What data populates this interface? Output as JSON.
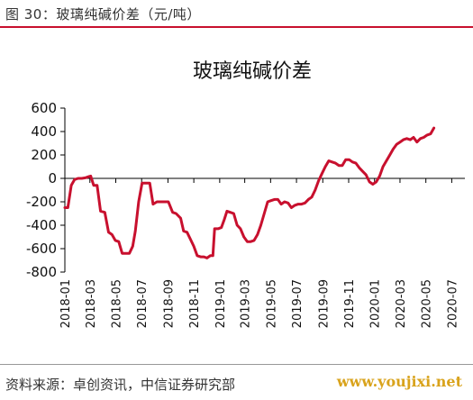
{
  "header": {
    "caption": "图 30：玻璃纯碱价差（元/吨）"
  },
  "footer": {
    "source": "资料来源：卓创资讯，中信证券研究部",
    "watermark": "www.youjixi.net"
  },
  "colors": {
    "series": "#c8102e",
    "accent_rule": "#c8102e"
  },
  "chart_data": {
    "type": "line",
    "title": "玻璃纯碱价差",
    "xlabel": "",
    "ylabel": "",
    "ylim": [
      -800,
      600
    ],
    "yticks": [
      "600",
      "400",
      "200",
      "0",
      "-200",
      "-400",
      "-600",
      "-800"
    ],
    "ytick_values": [
      600,
      400,
      200,
      0,
      -200,
      -400,
      -600,
      -800
    ],
    "x_start": "2018-01",
    "x_end": "2020-08",
    "xticks": [
      "2018-01",
      "2018-03",
      "2018-05",
      "2018-07",
      "2018-09",
      "2018-11",
      "2019-01",
      "2019-03",
      "2019-05",
      "2019-07",
      "2019-09",
      "2019-11",
      "2020-01",
      "2020-03",
      "2020-05",
      "2020-07"
    ],
    "grid": false,
    "legend": "none",
    "series": [
      {
        "points": [
          [
            "2018-01-01",
            -250
          ],
          [
            "2018-01-08",
            -250
          ],
          [
            "2018-01-16",
            -60
          ],
          [
            "2018-01-24",
            -10
          ],
          [
            "2018-02-01",
            0
          ],
          [
            "2018-02-10",
            0
          ],
          [
            "2018-02-18",
            5
          ],
          [
            "2018-02-26",
            15
          ],
          [
            "2018-03-03",
            20
          ],
          [
            "2018-03-10",
            -60
          ],
          [
            "2018-03-18",
            -60
          ],
          [
            "2018-03-26",
            -280
          ],
          [
            "2018-04-05",
            -290
          ],
          [
            "2018-04-14",
            -460
          ],
          [
            "2018-04-22",
            -480
          ],
          [
            "2018-04-30",
            -530
          ],
          [
            "2018-05-08",
            -540
          ],
          [
            "2018-05-16",
            -640
          ],
          [
            "2018-05-24",
            -640
          ],
          [
            "2018-06-02",
            -640
          ],
          [
            "2018-06-10",
            -580
          ],
          [
            "2018-06-16",
            -450
          ],
          [
            "2018-06-24",
            -200
          ],
          [
            "2018-07-02",
            -40
          ],
          [
            "2018-07-12",
            -40
          ],
          [
            "2018-07-20",
            -40
          ],
          [
            "2018-07-28",
            -220
          ],
          [
            "2018-08-06",
            -200
          ],
          [
            "2018-08-20",
            -200
          ],
          [
            "2018-09-02",
            -200
          ],
          [
            "2018-09-12",
            -290
          ],
          [
            "2018-09-20",
            -300
          ],
          [
            "2018-10-01",
            -340
          ],
          [
            "2018-10-08",
            -450
          ],
          [
            "2018-10-16",
            -460
          ],
          [
            "2018-10-24",
            -520
          ],
          [
            "2018-11-01",
            -580
          ],
          [
            "2018-11-09",
            -660
          ],
          [
            "2018-11-17",
            -670
          ],
          [
            "2018-11-25",
            -670
          ],
          [
            "2018-12-02",
            -680
          ],
          [
            "2018-12-10",
            -660
          ],
          [
            "2018-12-16",
            -660
          ],
          [
            "2018-12-20",
            -430
          ],
          [
            "2018-12-28",
            -430
          ],
          [
            "2019-01-05",
            -420
          ],
          [
            "2019-01-12",
            -350
          ],
          [
            "2019-01-18",
            -280
          ],
          [
            "2019-01-26",
            -290
          ],
          [
            "2019-02-03",
            -300
          ],
          [
            "2019-02-11",
            -400
          ],
          [
            "2019-02-19",
            -430
          ],
          [
            "2019-02-27",
            -500
          ],
          [
            "2019-03-07",
            -540
          ],
          [
            "2019-03-15",
            -540
          ],
          [
            "2019-03-23",
            -530
          ],
          [
            "2019-03-31",
            -480
          ],
          [
            "2019-04-08",
            -400
          ],
          [
            "2019-04-16",
            -300
          ],
          [
            "2019-04-24",
            -200
          ],
          [
            "2019-05-02",
            -190
          ],
          [
            "2019-05-10",
            -180
          ],
          [
            "2019-05-18",
            -180
          ],
          [
            "2019-05-26",
            -220
          ],
          [
            "2019-06-03",
            -200
          ],
          [
            "2019-06-11",
            -210
          ],
          [
            "2019-06-19",
            -250
          ],
          [
            "2019-06-27",
            -230
          ],
          [
            "2019-07-05",
            -220
          ],
          [
            "2019-07-13",
            -220
          ],
          [
            "2019-07-21",
            -210
          ],
          [
            "2019-07-29",
            -180
          ],
          [
            "2019-08-06",
            -160
          ],
          [
            "2019-08-14",
            -100
          ],
          [
            "2019-08-22",
            -20
          ],
          [
            "2019-08-30",
            40
          ],
          [
            "2019-09-07",
            100
          ],
          [
            "2019-09-15",
            150
          ],
          [
            "2019-09-23",
            140
          ],
          [
            "2019-10-01",
            130
          ],
          [
            "2019-10-09",
            110
          ],
          [
            "2019-10-17",
            110
          ],
          [
            "2019-10-25",
            160
          ],
          [
            "2019-11-02",
            160
          ],
          [
            "2019-11-10",
            140
          ],
          [
            "2019-11-18",
            130
          ],
          [
            "2019-11-26",
            90
          ],
          [
            "2019-12-04",
            60
          ],
          [
            "2019-12-12",
            30
          ],
          [
            "2019-12-20",
            -30
          ],
          [
            "2019-12-28",
            -50
          ],
          [
            "2020-01-05",
            -30
          ],
          [
            "2020-01-13",
            20
          ],
          [
            "2020-01-21",
            100
          ],
          [
            "2020-01-29",
            150
          ],
          [
            "2020-02-06",
            200
          ],
          [
            "2020-02-14",
            250
          ],
          [
            "2020-02-22",
            290
          ],
          [
            "2020-03-01",
            310
          ],
          [
            "2020-03-09",
            330
          ],
          [
            "2020-03-17",
            340
          ],
          [
            "2020-03-25",
            330
          ],
          [
            "2020-04-02",
            350
          ],
          [
            "2020-04-10",
            310
          ],
          [
            "2020-04-18",
            340
          ],
          [
            "2020-04-26",
            350
          ],
          [
            "2020-05-04",
            370
          ],
          [
            "2020-05-12",
            380
          ],
          [
            "2020-05-20",
            430
          ]
        ]
      }
    ]
  }
}
